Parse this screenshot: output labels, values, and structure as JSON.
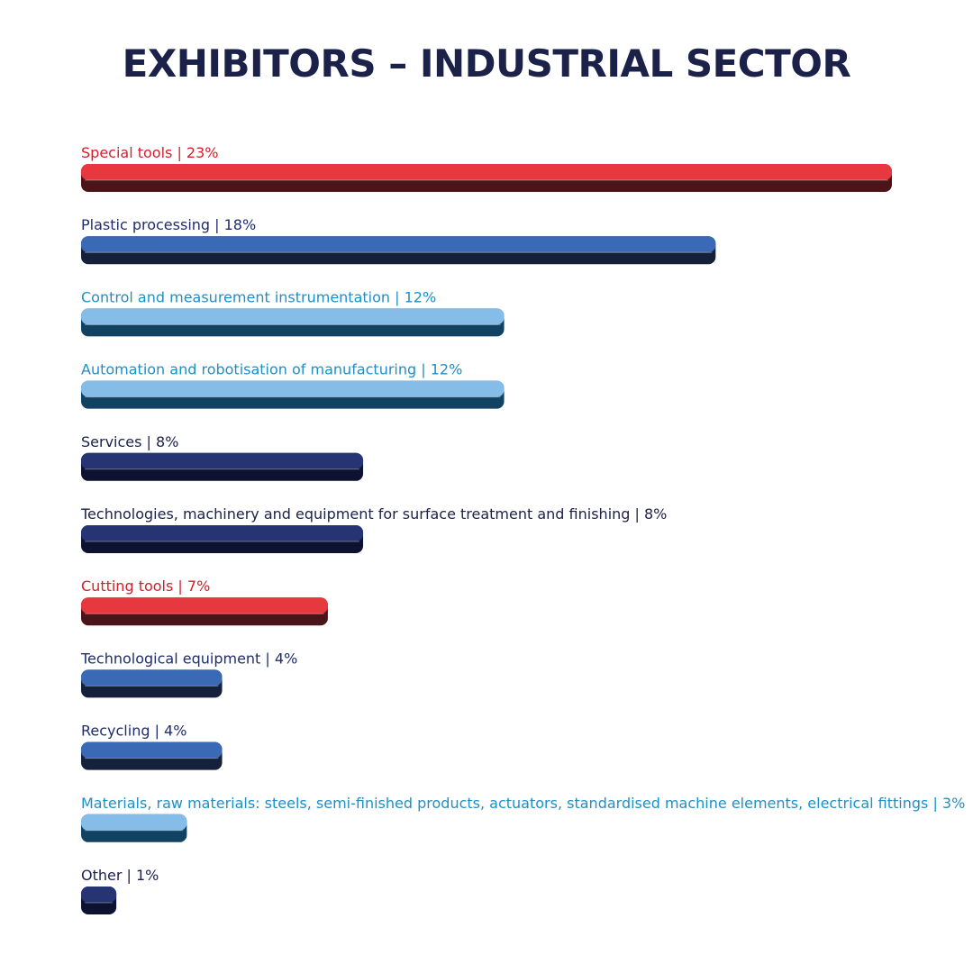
{
  "chart_data": {
    "type": "bar",
    "orientation": "horizontal",
    "title": "EXHIBITORS – INDUSTRIAL SECTOR",
    "xlabel": "",
    "ylabel": "",
    "unit": "%",
    "xlim": [
      0,
      23
    ],
    "grid": false,
    "legend": "none",
    "categories": [
      "Special tools",
      "Plastic processing",
      "Control and measurement instrumentation",
      "Automation and robotisation of manufacturing",
      "Services",
      "Technologies, machinery and equipment for surface treatment and finishing",
      "Cutting tools",
      "Technological equipment",
      "Recycling",
      "Materials, raw materials: steels, semi-finished products, actuators, standardised machine elements, electrical fittings",
      "Other"
    ],
    "labels": [
      "Special tools | 23%",
      "Plastic processing | 18%",
      "Control and measurement instrumentation | 12%",
      "Automation and robotisation of manufacturing | 12%",
      "Services | 8%",
      "Technologies, machinery and equipment for surface treatment and finishing | 8%",
      "Cutting tools | 7%",
      "Technological equipment | 4%",
      "Recycling | 4%",
      "Materials, raw materials: steels, semi-finished products, actuators, standardised machine elements, electrical fittings | 3%",
      "Other | 1%"
    ],
    "values": [
      23,
      18,
      12,
      12,
      8,
      8,
      7,
      4,
      4,
      3,
      1
    ],
    "color_keys": [
      "red",
      "mid",
      "light",
      "light",
      "dark",
      "dark",
      "red",
      "mid",
      "mid",
      "light",
      "dark"
    ]
  },
  "colors": {
    "title": "#1b2149",
    "red": {
      "top": "#e8383f",
      "side": "#4a1418",
      "text": "#d3202a"
    },
    "mid": {
      "top": "#3a6ab5",
      "side": "#15213a",
      "text": "#1f2d6e"
    },
    "light": {
      "top": "#85bde8",
      "side": "#124261",
      "text": "#1e8fc7"
    },
    "dark": {
      "top": "#263474",
      "side": "#0d1230",
      "text": "#1b2149"
    }
  }
}
